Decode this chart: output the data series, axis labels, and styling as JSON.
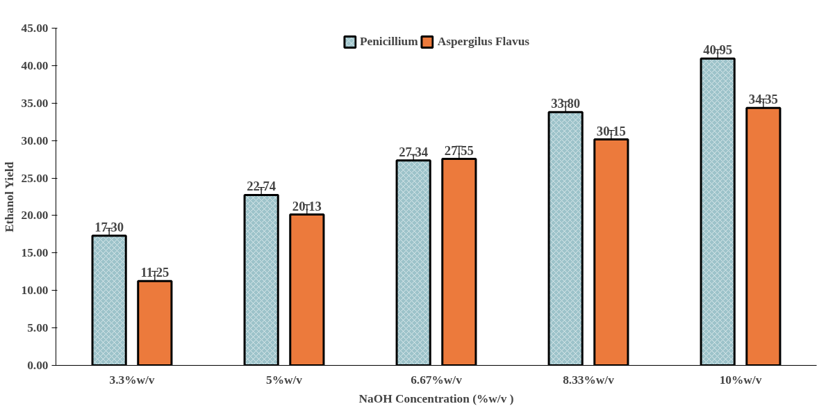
{
  "chart_data": {
    "type": "bar",
    "xlabel": "NaOH Concentration (%w/v )",
    "ylabel": "Ethanol Yield",
    "categories": [
      "3.3%w/v",
      "5%w/v",
      "6.67%w/v",
      "8.33%w/v",
      "10%w/v"
    ],
    "series": [
      {
        "name": "Penicillium",
        "color": "#9dc3ca",
        "values": [
          17.3,
          22.74,
          27.34,
          33.8,
          40.95
        ],
        "errors": [
          1.0,
          1.0,
          0.8,
          1.4,
          1.2
        ],
        "value_labels": [
          "17.30",
          "22.74",
          "27.34",
          "33.80",
          "40.95"
        ]
      },
      {
        "name": "Aspergilus Flavus",
        "color": "#ec7a3c",
        "values": [
          11.25,
          20.13,
          27.55,
          30.15,
          34.35
        ],
        "errors": [
          1.3,
          1.3,
          1.7,
          1.2,
          1.2
        ],
        "value_labels": [
          "11.25",
          "20.13",
          "27.55",
          "30.15",
          "34.35"
        ]
      }
    ],
    "ylim": [
      0,
      45
    ],
    "yticks": [
      {
        "value": 0,
        "label": "0.00"
      },
      {
        "value": 5,
        "label": "5.00"
      },
      {
        "value": 10,
        "label": "10.00"
      },
      {
        "value": 15,
        "label": "15.00"
      },
      {
        "value": 20,
        "label": "20.00"
      },
      {
        "value": 25,
        "label": "25.00"
      },
      {
        "value": 30,
        "label": "30.00"
      },
      {
        "value": 35,
        "label": "35.00"
      },
      {
        "value": 40,
        "label": "40.00"
      },
      {
        "value": 45,
        "label": "45.00"
      }
    ],
    "grid": false,
    "legend": "top"
  }
}
